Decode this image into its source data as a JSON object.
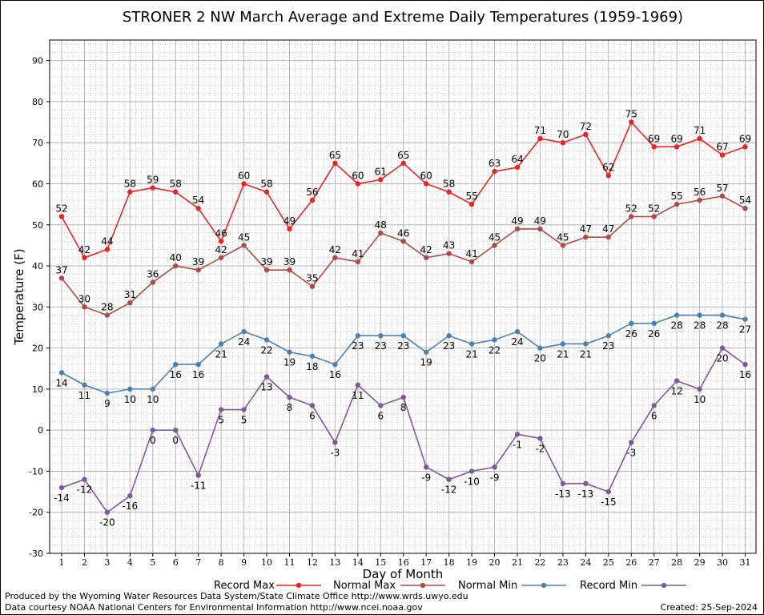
{
  "chart_data": {
    "type": "line",
    "title": "STRONER 2 NW March Average and Extreme Daily Temperatures (1959-1969)",
    "xlabel": "Day of Month",
    "ylabel": "Temperature (F)",
    "ylim": [
      -30,
      95
    ],
    "yticks": [
      -30,
      -20,
      -10,
      0,
      10,
      20,
      30,
      40,
      50,
      60,
      70,
      80,
      90
    ],
    "x": [
      1,
      2,
      3,
      4,
      5,
      6,
      7,
      8,
      9,
      10,
      11,
      12,
      13,
      14,
      15,
      16,
      17,
      18,
      19,
      20,
      21,
      22,
      23,
      24,
      25,
      26,
      27,
      28,
      29,
      30,
      31
    ],
    "grid": true,
    "legend_position": "bottom",
    "series": [
      {
        "name": "Record Max",
        "color": "#ee2222",
        "values": [
          52,
          42,
          44,
          58,
          59,
          58,
          54,
          46,
          60,
          58,
          49,
          56,
          65,
          60,
          61,
          65,
          60,
          58,
          55,
          63,
          64,
          71,
          70,
          72,
          62,
          75,
          69,
          69,
          71,
          67,
          69
        ]
      },
      {
        "name": "Normal Max",
        "color": "#b04848",
        "values": [
          37,
          30,
          28,
          31,
          36,
          40,
          39,
          42,
          45,
          39,
          39,
          35,
          42,
          41,
          48,
          46,
          42,
          43,
          41,
          45,
          49,
          49,
          45,
          47,
          47,
          52,
          52,
          55,
          56,
          57,
          54
        ]
      },
      {
        "name": "Normal Min",
        "color": "#4a80b4",
        "values": [
          14,
          11,
          9,
          10,
          10,
          16,
          16,
          21,
          24,
          22,
          19,
          18,
          16,
          23,
          23,
          23,
          19,
          23,
          21,
          22,
          24,
          20,
          21,
          21,
          23,
          26,
          26,
          28,
          28,
          28,
          27
        ]
      },
      {
        "name": "Record Min",
        "color": "#7a5a9a",
        "values": [
          -14,
          -12,
          -20,
          -16,
          0,
          0,
          -11,
          5,
          5,
          13,
          8,
          6,
          -3,
          11,
          6,
          8,
          -9,
          -12,
          -10,
          -9,
          -1,
          -2,
          -13,
          -13,
          -15,
          -3,
          6,
          12,
          10,
          20,
          16
        ]
      }
    ]
  },
  "footer": {
    "line1": "Produced by the Wyoming Water Resources Data System/State Climate Office http://www.wrds.uwyo.edu",
    "line2": "Data courtesy NOAA National Centers for Environmental Information http://www.ncei.noaa.gov",
    "created": "Created:  25-Sep-2024"
  }
}
